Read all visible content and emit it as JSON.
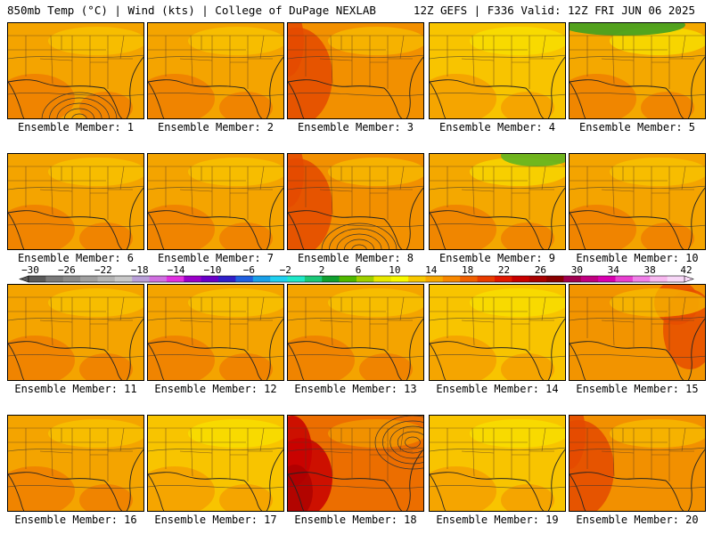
{
  "header": {
    "left": "850mb Temp (°C) | Wind (kts) | College of DuPage NEXLAB",
    "right": "12Z GEFS | F336 Valid: 12Z FRI JUN 06 2025"
  },
  "panels": [
    {
      "label": "Ensemble Member: 1",
      "tone": "orange",
      "feature": "low-south"
    },
    {
      "label": "Ensemble Member: 2",
      "tone": "orange",
      "feature": "none"
    },
    {
      "label": "Ensemble Member: 3",
      "tone": "warm-west",
      "feature": "none"
    },
    {
      "label": "Ensemble Member: 4",
      "tone": "yellow",
      "feature": "none"
    },
    {
      "label": "Ensemble Member: 5",
      "tone": "green-north",
      "feature": "none"
    },
    {
      "label": "Ensemble Member: 6",
      "tone": "orange",
      "feature": "none"
    },
    {
      "label": "Ensemble Member: 7",
      "tone": "orange",
      "feature": "none"
    },
    {
      "label": "Ensemble Member: 8",
      "tone": "warm-west",
      "feature": "low-south"
    },
    {
      "label": "Ensemble Member: 9",
      "tone": "green-northeast",
      "feature": "none"
    },
    {
      "label": "Ensemble Member: 10",
      "tone": "orange",
      "feature": "none"
    },
    {
      "label": "Ensemble Member: 11",
      "tone": "orange",
      "feature": "none"
    },
    {
      "label": "Ensemble Member: 12",
      "tone": "orange",
      "feature": "none"
    },
    {
      "label": "Ensemble Member: 13",
      "tone": "orange",
      "feature": "none"
    },
    {
      "label": "Ensemble Member: 14",
      "tone": "yellow",
      "feature": "none"
    },
    {
      "label": "Ensemble Member: 15",
      "tone": "warm-east",
      "feature": "none"
    },
    {
      "label": "Ensemble Member: 16",
      "tone": "orange",
      "feature": "none"
    },
    {
      "label": "Ensemble Member: 17",
      "tone": "yellow",
      "feature": "none"
    },
    {
      "label": "Ensemble Member: 18",
      "tone": "hot-west",
      "feature": "low-east"
    },
    {
      "label": "Ensemble Member: 19",
      "tone": "yellow",
      "feature": "none"
    },
    {
      "label": "Ensemble Member: 20",
      "tone": "warm-west",
      "feature": "none"
    }
  ],
  "colorbar": {
    "tick_labels": [
      "−30",
      "−26",
      "−22",
      "−18",
      "−14",
      "−10",
      "−6",
      "−2",
      "2",
      "6",
      "10",
      "14",
      "18",
      "22",
      "26",
      "30",
      "34",
      "38",
      "42"
    ],
    "colors": [
      "#5a5a5a",
      "#7a7a7a",
      "#8c8c8c",
      "#a0a0a0",
      "#b4b4b4",
      "#c8c8c8",
      "#b9a0d8",
      "#d070e0",
      "#e030e0",
      "#9a00c8",
      "#6a00c8",
      "#3020c8",
      "#2060e0",
      "#1aa0e8",
      "#20d0f0",
      "#20e8c8",
      "#1cc878",
      "#10a030",
      "#50b800",
      "#a0d000",
      "#e8e800",
      "#f8f800",
      "#f8c800",
      "#f8a800",
      "#f88800",
      "#f06000",
      "#e83c00",
      "#e01800",
      "#c80000",
      "#a80000",
      "#880000",
      "#a00050",
      "#c00080",
      "#d800b0",
      "#e840d0",
      "#f080e8",
      "#f8b8f0",
      "#f8d8f8"
    ],
    "unit": "°C"
  },
  "tone_colors": {
    "orange": {
      "base": "#f4a400",
      "warm": "#ef7f00",
      "cool": "#f8c800"
    },
    "yellow": {
      "base": "#f8c400",
      "warm": "#f4a000",
      "cool": "#f8e400"
    },
    "warm-west": {
      "base": "#f29000",
      "warm": "#e44a00",
      "cool": "#f8c000"
    },
    "warm-east": {
      "base": "#f29400",
      "warm": "#e64e00",
      "cool": "#f8c000"
    },
    "hot-west": {
      "base": "#ec6e00",
      "warm": "#c80000",
      "cool": "#f4a000"
    },
    "green-north": {
      "base": "#f4a800",
      "warm": "#ef8000",
      "cool": "#f8e800",
      "accent": "#40a020"
    },
    "green-northeast": {
      "base": "#f4a800",
      "warm": "#ef8000",
      "cool": "#f8e000",
      "accent": "#60b420"
    }
  }
}
